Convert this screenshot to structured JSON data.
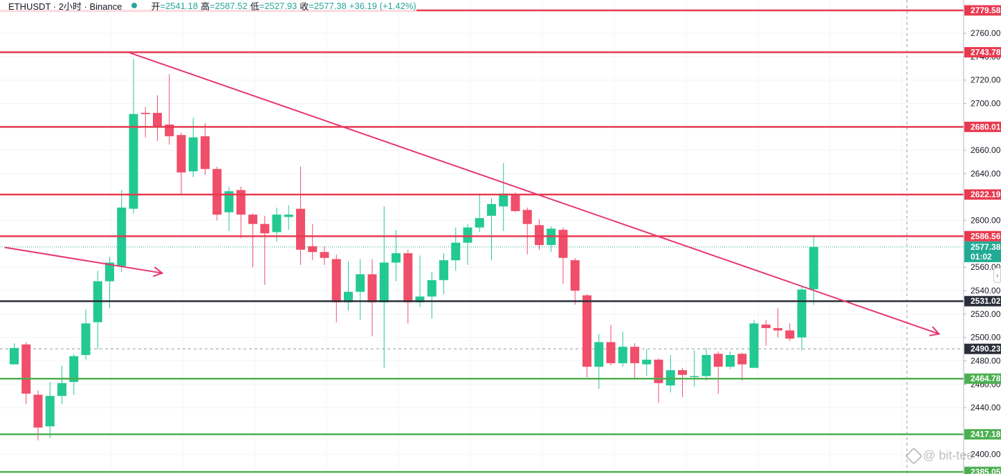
{
  "header": {
    "symbol": "ETHUSDT · 2小时 · Binance",
    "open_label": "开",
    "open": "=2541.18",
    "high_label": "高",
    "high": "=2587.52",
    "low_label": "低",
    "low": "=2527.93",
    "close_label": "收",
    "close": "=2577.38",
    "change": "+36.19 (+1.42%)"
  },
  "watermark": {
    "text": "@ bit-tee"
  },
  "scroll_button": {
    "glyph": "›"
  },
  "colors": {
    "up": "#22c993",
    "down": "#f04e6a",
    "level_red": "#e8394f",
    "level_green": "#4caf50",
    "level_dark": "#2a2e39",
    "trendline": "#e7356e",
    "price_tag": "#22ab94",
    "grid": "#f0f3fa"
  },
  "chart_data": {
    "type": "candlestick",
    "ylim": [
      2385.05,
      2787
    ],
    "y_ticks": [
      "2760.00",
      "2740.00",
      "2720.00",
      "2700.00",
      "2660.00",
      "2640.00",
      "2600.00",
      "2560.00",
      "2540.00",
      "2520.00",
      "2500.00",
      "2480.00",
      "2460.00",
      "2440.00",
      "2400.00"
    ],
    "candles": [
      {
        "o": 2477,
        "h": 2495,
        "l": 2477,
        "c": 2491
      },
      {
        "o": 2494,
        "h": 2496,
        "l": 2443,
        "c": 2452
      },
      {
        "o": 2451,
        "h": 2455,
        "l": 2412,
        "c": 2423
      },
      {
        "o": 2424,
        "h": 2462,
        "l": 2414,
        "c": 2450
      },
      {
        "o": 2450,
        "h": 2476,
        "l": 2443,
        "c": 2461
      },
      {
        "o": 2462,
        "h": 2486,
        "l": 2451,
        "c": 2484
      },
      {
        "o": 2485,
        "h": 2524,
        "l": 2481,
        "c": 2512
      },
      {
        "o": 2513,
        "h": 2557,
        "l": 2490,
        "c": 2548
      },
      {
        "o": 2548,
        "h": 2569,
        "l": 2525,
        "c": 2564
      },
      {
        "o": 2561,
        "h": 2626,
        "l": 2556,
        "c": 2611
      },
      {
        "o": 2610,
        "h": 2738,
        "l": 2606,
        "c": 2691
      },
      {
        "o": 2692,
        "h": 2697,
        "l": 2671,
        "c": 2691
      },
      {
        "o": 2692,
        "h": 2707,
        "l": 2668,
        "c": 2680
      },
      {
        "o": 2682,
        "h": 2725,
        "l": 2665,
        "c": 2672
      },
      {
        "o": 2673,
        "h": 2675,
        "l": 2622,
        "c": 2641
      },
      {
        "o": 2642,
        "h": 2688,
        "l": 2637,
        "c": 2671
      },
      {
        "o": 2672,
        "h": 2683,
        "l": 2639,
        "c": 2644
      },
      {
        "o": 2644,
        "h": 2646,
        "l": 2600,
        "c": 2605
      },
      {
        "o": 2607,
        "h": 2629,
        "l": 2591,
        "c": 2625
      },
      {
        "o": 2626,
        "h": 2629,
        "l": 2585,
        "c": 2605
      },
      {
        "o": 2605,
        "h": 2606,
        "l": 2560,
        "c": 2597
      },
      {
        "o": 2597,
        "h": 2604,
        "l": 2545,
        "c": 2589
      },
      {
        "o": 2590,
        "h": 2611,
        "l": 2582,
        "c": 2605
      },
      {
        "o": 2603,
        "h": 2613,
        "l": 2592,
        "c": 2605
      },
      {
        "o": 2610,
        "h": 2646,
        "l": 2562,
        "c": 2575
      },
      {
        "o": 2578,
        "h": 2597,
        "l": 2566,
        "c": 2573
      },
      {
        "o": 2573,
        "h": 2578,
        "l": 2562,
        "c": 2568
      },
      {
        "o": 2567,
        "h": 2571,
        "l": 2513,
        "c": 2530
      },
      {
        "o": 2530,
        "h": 2565,
        "l": 2523,
        "c": 2539
      },
      {
        "o": 2539,
        "h": 2567,
        "l": 2515,
        "c": 2554
      },
      {
        "o": 2554,
        "h": 2567,
        "l": 2501,
        "c": 2530
      },
      {
        "o": 2530,
        "h": 2612,
        "l": 2474,
        "c": 2564
      },
      {
        "o": 2564,
        "h": 2592,
        "l": 2548,
        "c": 2572
      },
      {
        "o": 2572,
        "h": 2575,
        "l": 2512,
        "c": 2530
      },
      {
        "o": 2530,
        "h": 2570,
        "l": 2526,
        "c": 2535
      },
      {
        "o": 2535,
        "h": 2556,
        "l": 2516,
        "c": 2549
      },
      {
        "o": 2549,
        "h": 2572,
        "l": 2537,
        "c": 2566
      },
      {
        "o": 2566,
        "h": 2594,
        "l": 2557,
        "c": 2581
      },
      {
        "o": 2581,
        "h": 2597,
        "l": 2562,
        "c": 2594
      },
      {
        "o": 2594,
        "h": 2623,
        "l": 2590,
        "c": 2602
      },
      {
        "o": 2604,
        "h": 2619,
        "l": 2566,
        "c": 2614
      },
      {
        "o": 2612,
        "h": 2649,
        "l": 2591,
        "c": 2623
      },
      {
        "o": 2622,
        "h": 2624,
        "l": 2607,
        "c": 2608
      },
      {
        "o": 2609,
        "h": 2611,
        "l": 2571,
        "c": 2597
      },
      {
        "o": 2596,
        "h": 2601,
        "l": 2575,
        "c": 2579
      },
      {
        "o": 2579,
        "h": 2595,
        "l": 2573,
        "c": 2593
      },
      {
        "o": 2592,
        "h": 2594,
        "l": 2546,
        "c": 2568
      },
      {
        "o": 2566,
        "h": 2568,
        "l": 2528,
        "c": 2540
      },
      {
        "o": 2536,
        "h": 2537,
        "l": 2466,
        "c": 2475
      },
      {
        "o": 2475,
        "h": 2503,
        "l": 2456,
        "c": 2496
      },
      {
        "o": 2496,
        "h": 2511,
        "l": 2476,
        "c": 2478
      },
      {
        "o": 2478,
        "h": 2505,
        "l": 2475,
        "c": 2492
      },
      {
        "o": 2492,
        "h": 2495,
        "l": 2464,
        "c": 2478
      },
      {
        "o": 2477,
        "h": 2490,
        "l": 2467,
        "c": 2481
      },
      {
        "o": 2481,
        "h": 2482,
        "l": 2444,
        "c": 2461
      },
      {
        "o": 2459,
        "h": 2485,
        "l": 2453,
        "c": 2472
      },
      {
        "o": 2472,
        "h": 2474,
        "l": 2449,
        "c": 2468
      },
      {
        "o": 2467,
        "h": 2489,
        "l": 2458,
        "c": 2467
      },
      {
        "o": 2467,
        "h": 2491,
        "l": 2463,
        "c": 2485
      },
      {
        "o": 2486,
        "h": 2488,
        "l": 2452,
        "c": 2475
      },
      {
        "o": 2475,
        "h": 2488,
        "l": 2473,
        "c": 2485
      },
      {
        "o": 2486,
        "h": 2487,
        "l": 2463,
        "c": 2477
      },
      {
        "o": 2474,
        "h": 2515,
        "l": 2475,
        "c": 2512
      },
      {
        "o": 2511,
        "h": 2515,
        "l": 2493,
        "c": 2508
      },
      {
        "o": 2508,
        "h": 2525,
        "l": 2500,
        "c": 2506
      },
      {
        "o": 2506,
        "h": 2512,
        "l": 2497,
        "c": 2499
      },
      {
        "o": 2500,
        "h": 2543,
        "l": 2489,
        "c": 2541
      },
      {
        "o": 2541.18,
        "h": 2587.52,
        "l": 2527.93,
        "c": 2577.38
      }
    ],
    "levels": [
      {
        "value": 2779.58,
        "label": "2779.58",
        "kind": "red"
      },
      {
        "value": 2743.78,
        "label": "2743.78",
        "kind": "red"
      },
      {
        "value": 2680.01,
        "label": "2680.01",
        "kind": "red"
      },
      {
        "value": 2622.19,
        "label": "2622.19",
        "kind": "red"
      },
      {
        "value": 2586.56,
        "label": "2586.56",
        "kind": "red"
      },
      {
        "value": 2531.02,
        "label": "2531.02",
        "kind": "dark"
      },
      {
        "value": 2464.78,
        "label": "2464.78",
        "kind": "green"
      },
      {
        "value": 2417.18,
        "label": "2417.18",
        "kind": "green"
      },
      {
        "value": 2385.05,
        "label": "2385.05",
        "kind": "green"
      }
    ],
    "last_price": {
      "value": 2577.38,
      "label": "2577.38",
      "countdown": "01:02"
    },
    "crosshair": {
      "value": 2490.23,
      "label": "2490.23"
    },
    "trendlines": [
      {
        "from": [
          9.5,
          2744
        ],
        "to": [
          77.5,
          2503
        ],
        "arrow": true
      },
      {
        "from": [
          -0.8,
          2577
        ],
        "to": [
          12.4,
          2555
        ],
        "arrow": true
      }
    ]
  }
}
